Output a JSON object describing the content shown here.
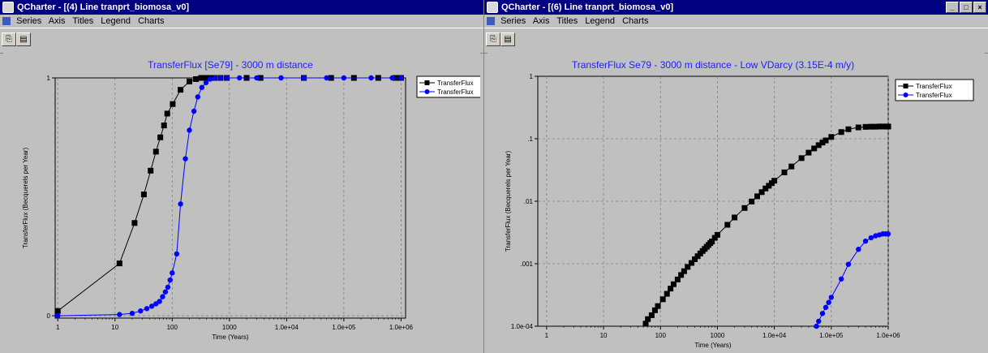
{
  "left_window": {
    "title": "QCharter - [(4) Line tranprt_biomosa_v0]",
    "menu": [
      "Series",
      "Axis",
      "Titles",
      "Legend",
      "Charts"
    ],
    "toolbar": [
      "copy-icon",
      "print-icon"
    ]
  },
  "right_window": {
    "title": "QCharter - [(6) Line tranprt_biomosa_v0]",
    "menu": [
      "Series",
      "Axis",
      "Titles",
      "Legend",
      "Charts"
    ],
    "toolbar": [
      "copy-icon",
      "print-icon"
    ],
    "window_controls": [
      "_",
      "□",
      "×"
    ]
  },
  "chart_data": [
    {
      "type": "line",
      "title": "TransferFlux [Se79] - 3000 m distance",
      "xlabel": "Time (Years)",
      "ylabel": "TransferFlux (Becquerels per Year)",
      "xscale": "log",
      "yscale": "linear",
      "xlim": [
        0.9,
        1200000
      ],
      "ylim": [
        -0.01,
        1.0
      ],
      "x_tick_values": [
        1,
        10,
        100,
        1000,
        10000,
        100000,
        1000000
      ],
      "x_tick_labels": [
        "1",
        "10",
        "100",
        "1000",
        "1.0e+04",
        "1.0e+05",
        "1.0e+06"
      ],
      "y_tick_values": [
        0,
        1
      ],
      "y_tick_labels": [
        "0",
        "1"
      ],
      "grid": true,
      "legend_position": "right",
      "series": [
        {
          "name": "TransferFlux",
          "color": "#000000",
          "marker": "square",
          "x": [
            1,
            12,
            22,
            32,
            42,
            52,
            62,
            72,
            82,
            102,
            140,
            200,
            260,
            320,
            380,
            450,
            550,
            700,
            900,
            2000,
            3500,
            20000,
            60000,
            150000,
            400000,
            800000,
            1000000
          ],
          "y": [
            0.02,
            0.22,
            0.39,
            0.51,
            0.61,
            0.69,
            0.75,
            0.8,
            0.85,
            0.89,
            0.95,
            0.985,
            0.995,
            1.0,
            1.0,
            1.0,
            1.0,
            1.0,
            1.0,
            1.0,
            1.0,
            1.0,
            1.0,
            1.0,
            1.0,
            1.0,
            1.0
          ]
        },
        {
          "name": "TransferFlux",
          "color": "#0000ff",
          "marker": "circle",
          "x": [
            1,
            12,
            20,
            28,
            36,
            44,
            52,
            60,
            68,
            76,
            84,
            92,
            100,
            120,
            140,
            170,
            200,
            240,
            280,
            330,
            390,
            460,
            560,
            700,
            900,
            1500,
            3000,
            8000,
            20000,
            50000,
            100000,
            300000,
            700000,
            1000000
          ],
          "y": [
            0.0,
            0.005,
            0.01,
            0.02,
            0.03,
            0.04,
            0.05,
            0.06,
            0.08,
            0.1,
            0.12,
            0.15,
            0.18,
            0.26,
            0.47,
            0.66,
            0.78,
            0.86,
            0.92,
            0.96,
            0.98,
            0.995,
            1.0,
            1.0,
            1.0,
            1.0,
            1.0,
            1.0,
            1.0,
            1.0,
            1.0,
            1.0,
            1.0,
            1.0
          ]
        }
      ]
    },
    {
      "type": "line",
      "title": "TransferFlux Se79  - 3000 m distance - Low VDarcy (3.15E-4 m/y)",
      "xlabel": "Time (Years)",
      "ylabel": "TransferFlux (Becquerels per Year)",
      "xscale": "log",
      "yscale": "log",
      "xlim": [
        0.7,
        1000000
      ],
      "ylim": [
        0.0001,
        1.0
      ],
      "x_tick_values": [
        1,
        10,
        100,
        1000,
        10000,
        100000,
        1000000
      ],
      "x_tick_labels": [
        "1",
        "10",
        "100",
        "1000",
        "1.0e+04",
        "1.0e+05",
        "1.0e+06"
      ],
      "y_tick_values": [
        0.0001,
        0.001,
        0.01,
        0.1,
        1
      ],
      "y_tick_labels": [
        "1.0e-04",
        ".001",
        ".01",
        ".1",
        "1"
      ],
      "grid": true,
      "legend_position": "top-right",
      "series": [
        {
          "name": "TransferFlux",
          "color": "#000000",
          "marker": "square",
          "x": [
            55,
            60,
            70,
            80,
            90,
            110,
            130,
            150,
            170,
            200,
            230,
            260,
            300,
            350,
            400,
            450,
            500,
            550,
            600,
            650,
            700,
            750,
            800,
            900,
            1000,
            1500,
            2000,
            3000,
            4000,
            5000,
            6000,
            7000,
            8000,
            9000,
            10000,
            15000,
            20000,
            30000,
            40000,
            50000,
            60000,
            70000,
            80000,
            100000,
            150000,
            200000,
            300000,
            400000,
            500000,
            600000,
            700000,
            800000,
            900000,
            1000000
          ],
          "y": [
            0.00011,
            0.00013,
            0.00015,
            0.00018,
            0.00021,
            0.00027,
            0.00033,
            0.0004,
            0.00047,
            0.00056,
            0.00066,
            0.00076,
            0.00089,
            0.00103,
            0.00118,
            0.00132,
            0.00146,
            0.0016,
            0.00173,
            0.00187,
            0.002,
            0.00214,
            0.00227,
            0.0026,
            0.0029,
            0.0042,
            0.0055,
            0.0078,
            0.0099,
            0.012,
            0.014,
            0.016,
            0.0177,
            0.0195,
            0.0213,
            0.029,
            0.036,
            0.049,
            0.06,
            0.07,
            0.079,
            0.087,
            0.094,
            0.107,
            0.128,
            0.142,
            0.152,
            0.155,
            0.156,
            0.156,
            0.157,
            0.157,
            0.157,
            0.157
          ]
        },
        {
          "name": "TransferFlux",
          "color": "#0000ff",
          "marker": "circle",
          "x": [
            55000,
            60000,
            70000,
            80000,
            90000,
            100000,
            150000,
            200000,
            300000,
            400000,
            500000,
            600000,
            700000,
            800000,
            900000,
            1000000
          ],
          "y": [
            0.0001,
            0.00012,
            0.00016,
            0.0002,
            0.00024,
            0.00029,
            0.00057,
            0.00098,
            0.0017,
            0.0023,
            0.0026,
            0.0028,
            0.0029,
            0.003,
            0.003,
            0.003
          ]
        }
      ]
    }
  ]
}
